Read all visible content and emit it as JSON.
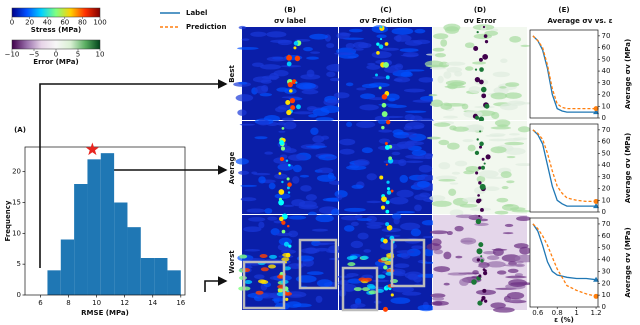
{
  "figure": {
    "panels": [
      "(A)",
      "(B)",
      "(C)",
      "(D)",
      "(E)"
    ],
    "column_titles": [
      "σv label",
      "σv Prediction",
      "σv Error"
    ],
    "row_labels": [
      "Best",
      "Average",
      "Worst"
    ]
  },
  "colorbars": [
    {
      "label": "Stress (MPa)",
      "lim": [
        0,
        100
      ],
      "ticks": [
        0,
        20,
        40,
        60,
        80,
        100
      ],
      "colors": [
        "#00008b",
        "#0050ff",
        "#00d0ff",
        "#80ff80",
        "#ffd000",
        "#ff3000",
        "#800000"
      ]
    },
    {
      "label": "Error (MPa)",
      "lim": [
        -10,
        10
      ],
      "ticks": [
        {
          "value": -10,
          "label": "−10"
        },
        {
          "value": -5,
          "label": "−5"
        },
        0,
        5,
        10
      ],
      "colors": [
        "#40004b",
        "#9970ab",
        "#e7d4e8",
        "#f7f7f7",
        "#d9f0d3",
        "#5aae61",
        "#00441b"
      ]
    }
  ],
  "chart_data": [
    {
      "type": "histogram",
      "bins": [
        6.5,
        7.45,
        8.4,
        9.35,
        10.3,
        11.25,
        12.2,
        13.15,
        14.1,
        15.05,
        16.0
      ],
      "values": [
        4,
        9,
        18,
        22,
        23,
        15,
        11,
        6,
        6,
        4
      ],
      "color": "#1f77b4",
      "xlim": [
        4.9,
        16.3
      ],
      "ylim": [
        0,
        24
      ],
      "xticks": [
        6,
        8,
        10,
        12,
        14,
        16
      ],
      "yticks": [
        0,
        5,
        10,
        15,
        20
      ],
      "xlabel": "RMSE (MPa)",
      "ylabel": "Frequency",
      "highlight": {
        "x": 9.7,
        "y": 23.6,
        "color": "#e8251f"
      }
    },
    {
      "type": "line",
      "title": "Average σv vs. ε",
      "legend": true,
      "x": [
        0.55,
        0.6,
        0.65,
        0.7,
        0.75,
        0.8,
        0.85,
        0.9,
        1.0,
        1.1,
        1.2
      ],
      "series": [
        {
          "name": "Label",
          "color": "#1f77b4",
          "dash": false,
          "values": [
            70,
            66,
            58,
            42,
            20,
            8,
            6,
            5,
            5,
            5,
            5
          ]
        },
        {
          "name": "Prediction",
          "color": "#ff7f0e",
          "dash": true,
          "values": [
            70,
            66,
            60,
            45,
            25,
            12,
            9,
            8,
            8,
            8,
            8
          ]
        }
      ],
      "xlim": [
        0.52,
        1.22
      ],
      "ylim": [
        0,
        75
      ],
      "yticks": [
        0,
        10,
        20,
        30,
        40,
        50,
        60,
        70
      ],
      "ylabel": "Average σv (MPa)"
    },
    {
      "type": "line",
      "x": [
        0.55,
        0.6,
        0.65,
        0.7,
        0.75,
        0.8,
        0.85,
        0.9,
        1.0,
        1.1,
        1.2
      ],
      "series": [
        {
          "color": "#1f77b4",
          "dash": false,
          "values": [
            70,
            66,
            58,
            40,
            22,
            10,
            7,
            5,
            5,
            5,
            5
          ]
        },
        {
          "color": "#ff7f0e",
          "dash": true,
          "values": [
            70,
            67,
            62,
            50,
            35,
            22,
            16,
            12,
            10,
            9,
            9
          ]
        }
      ],
      "xlim": [
        0.52,
        1.22
      ],
      "ylim": [
        0,
        75
      ],
      "yticks": [
        0,
        10,
        20,
        30,
        40,
        50,
        60,
        70
      ],
      "ylabel": "Average σv (MPa)"
    },
    {
      "type": "line",
      "x": [
        0.55,
        0.6,
        0.65,
        0.7,
        0.75,
        0.8,
        0.85,
        0.9,
        1.0,
        1.1,
        1.2
      ],
      "series": [
        {
          "color": "#1f77b4",
          "dash": false,
          "values": [
            70,
            64,
            52,
            38,
            30,
            27,
            26,
            25,
            24,
            24,
            23
          ]
        },
        {
          "color": "#ff7f0e",
          "dash": true,
          "values": [
            70,
            66,
            60,
            52,
            42,
            32,
            25,
            18,
            14,
            11,
            9
          ]
        }
      ],
      "xlim": [
        0.52,
        1.22
      ],
      "ylim": [
        0,
        75
      ],
      "yticks": [
        0,
        10,
        20,
        30,
        40,
        50,
        60,
        70
      ],
      "xticks": [
        0.6,
        0.8,
        1.0,
        1.2
      ],
      "ylabel": "Average σv (MPa)",
      "xlabel": "ε (%)"
    }
  ]
}
